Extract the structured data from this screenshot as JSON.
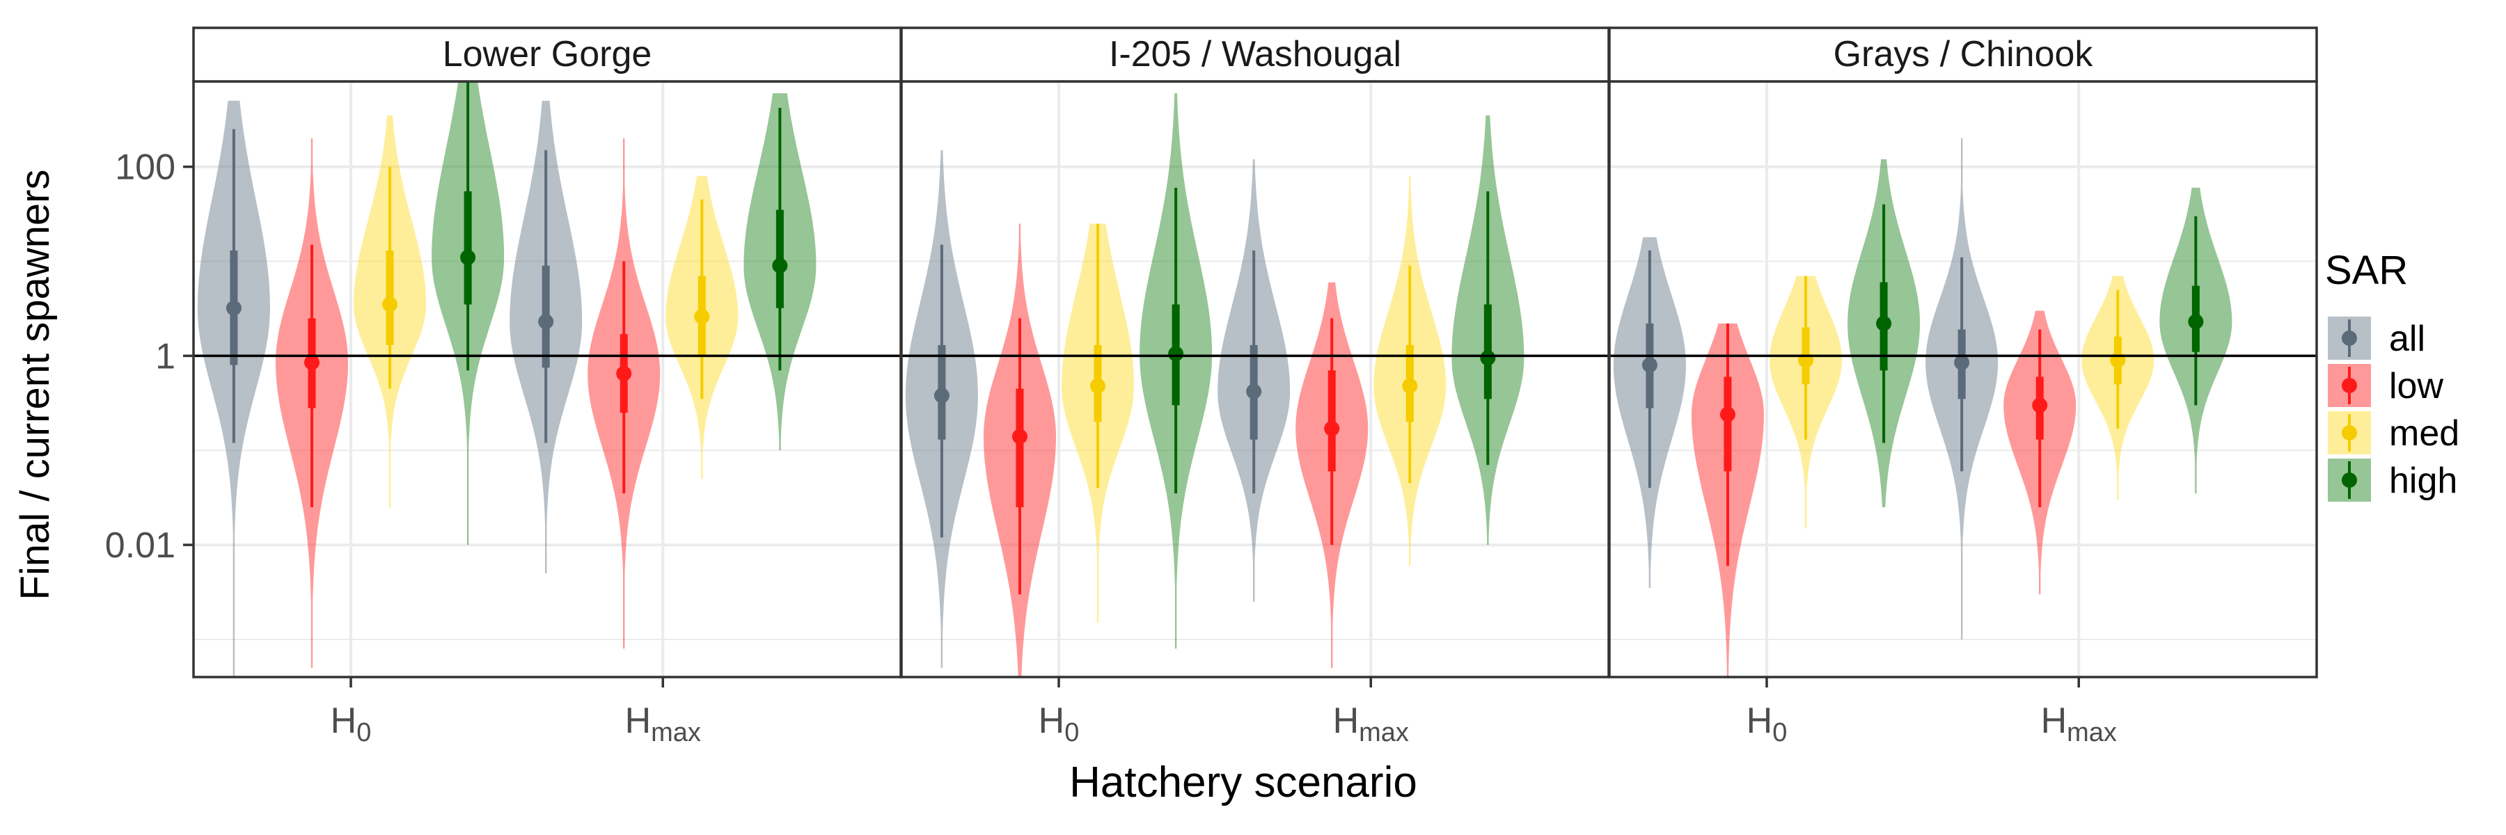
{
  "chart_data": {
    "type": "violin",
    "ylabel": "Final / current spawners",
    "xlabel": "Hatchery scenario",
    "y_scale": "log10",
    "ylim": [
      0.0004,
      800
    ],
    "y_ticks": [
      {
        "value": 0.01,
        "label": "0.01"
      },
      {
        "value": 1,
        "label": "1"
      },
      {
        "value": 100,
        "label": "100"
      }
    ],
    "reference_line": 1,
    "categories": [
      {
        "base": "H",
        "sub": "0"
      },
      {
        "base": "H",
        "sub": "max"
      }
    ],
    "legend": {
      "title": "SAR",
      "entries": [
        {
          "key": "all",
          "label": "all",
          "color": "#708090",
          "dark": "#5c6b7a"
        },
        {
          "key": "low",
          "label": "low",
          "color": "#ff3333",
          "dark": "#ff1a1a"
        },
        {
          "key": "med",
          "label": "med",
          "color": "#ffdd33",
          "dark": "#f5cc00"
        },
        {
          "key": "high",
          "label": "high",
          "color": "#2e8b2e",
          "dark": "#006400"
        }
      ]
    },
    "panels": [
      {
        "title": "Lower Gorge",
        "groups": [
          {
            "category": "H0",
            "sar": "all",
            "min": 0.0004,
            "q05": 0.12,
            "q25": 0.8,
            "median": 3.2,
            "q75": 13,
            "q95": 250,
            "max": 500
          },
          {
            "category": "H0",
            "sar": "low",
            "min": 0.0005,
            "q05": 0.025,
            "q25": 0.28,
            "median": 0.85,
            "q75": 2.5,
            "q95": 15,
            "max": 200
          },
          {
            "category": "H0",
            "sar": "med",
            "min": 0.025,
            "q05": 0.45,
            "q25": 1.3,
            "median": 3.5,
            "q75": 13,
            "q95": 100,
            "max": 350
          },
          {
            "category": "H0",
            "sar": "high",
            "min": 0.01,
            "q05": 0.7,
            "q25": 3.5,
            "median": 11,
            "q75": 55,
            "q95": 850,
            "max": 850
          },
          {
            "category": "Hmax",
            "sar": "all",
            "min": 0.005,
            "q05": 0.12,
            "q25": 0.75,
            "median": 2.3,
            "q75": 9,
            "q95": 150,
            "max": 500
          },
          {
            "category": "Hmax",
            "sar": "low",
            "min": 0.0008,
            "q05": 0.035,
            "q25": 0.25,
            "median": 0.65,
            "q75": 1.7,
            "q95": 10,
            "max": 200
          },
          {
            "category": "Hmax",
            "sar": "med",
            "min": 0.05,
            "q05": 0.35,
            "q25": 1.0,
            "median": 2.6,
            "q75": 7,
            "q95": 45,
            "max": 80
          },
          {
            "category": "Hmax",
            "sar": "high",
            "min": 0.1,
            "q05": 0.7,
            "q25": 3.2,
            "median": 9,
            "q75": 35,
            "q95": 420,
            "max": 600
          }
        ]
      },
      {
        "title": "I-205 / Washougal",
        "groups": [
          {
            "category": "H0",
            "sar": "all",
            "min": 0.0005,
            "q05": 0.012,
            "q25": 0.13,
            "median": 0.38,
            "q75": 1.3,
            "q95": 15,
            "max": 150
          },
          {
            "category": "H0",
            "sar": "low",
            "min": 0.0004,
            "q05": 0.003,
            "q25": 0.025,
            "median": 0.14,
            "q75": 0.45,
            "q95": 2.5,
            "max": 25
          },
          {
            "category": "H0",
            "sar": "med",
            "min": 0.0015,
            "q05": 0.04,
            "q25": 0.2,
            "median": 0.48,
            "q75": 1.3,
            "q95": 25,
            "max": 25
          },
          {
            "category": "H0",
            "sar": "high",
            "min": 0.0008,
            "q05": 0.035,
            "q25": 0.3,
            "median": 1.05,
            "q75": 3.5,
            "q95": 60,
            "max": 600
          },
          {
            "category": "Hmax",
            "sar": "all",
            "min": 0.0025,
            "q05": 0.035,
            "q25": 0.13,
            "median": 0.42,
            "q75": 1.3,
            "q95": 13,
            "max": 120
          },
          {
            "category": "Hmax",
            "sar": "low",
            "min": 0.0005,
            "q05": 0.01,
            "q25": 0.06,
            "median": 0.17,
            "q75": 0.7,
            "q95": 2.5,
            "max": 6
          },
          {
            "category": "Hmax",
            "sar": "med",
            "min": 0.006,
            "q05": 0.045,
            "q25": 0.2,
            "median": 0.48,
            "q75": 1.3,
            "q95": 9,
            "max": 80
          },
          {
            "category": "Hmax",
            "sar": "high",
            "min": 0.01,
            "q05": 0.07,
            "q25": 0.35,
            "median": 0.95,
            "q75": 3.5,
            "q95": 55,
            "max": 350
          }
        ]
      },
      {
        "title": "Grays / Chinook",
        "groups": [
          {
            "category": "H0",
            "sar": "all",
            "min": 0.0035,
            "q05": 0.04,
            "q25": 0.28,
            "median": 0.8,
            "q75": 2.2,
            "q95": 13,
            "max": 18
          },
          {
            "category": "H0",
            "sar": "low",
            "min": 0.0004,
            "q05": 0.006,
            "q25": 0.06,
            "median": 0.24,
            "q75": 0.6,
            "q95": 2.2,
            "max": 2.2
          },
          {
            "category": "H0",
            "sar": "med",
            "min": 0.015,
            "q05": 0.13,
            "q25": 0.5,
            "median": 0.9,
            "q75": 2.0,
            "q95": 7,
            "max": 7
          },
          {
            "category": "H0",
            "sar": "high",
            "min": 0.025,
            "q05": 0.12,
            "q25": 0.7,
            "median": 2.2,
            "q75": 6,
            "q95": 40,
            "max": 120
          },
          {
            "category": "Hmax",
            "sar": "all",
            "min": 0.001,
            "q05": 0.06,
            "q25": 0.35,
            "median": 0.85,
            "q75": 1.9,
            "q95": 11,
            "max": 200
          },
          {
            "category": "Hmax",
            "sar": "low",
            "min": 0.003,
            "q05": 0.025,
            "q25": 0.13,
            "median": 0.3,
            "q75": 0.6,
            "q95": 1.9,
            "max": 3
          },
          {
            "category": "Hmax",
            "sar": "med",
            "min": 0.03,
            "q05": 0.17,
            "q25": 0.5,
            "median": 0.9,
            "q75": 1.6,
            "q95": 5,
            "max": 7
          },
          {
            "category": "Hmax",
            "sar": "high",
            "min": 0.035,
            "q05": 0.3,
            "q25": 1.1,
            "median": 2.3,
            "q75": 5.5,
            "q95": 30,
            "max": 60
          }
        ]
      }
    ]
  }
}
